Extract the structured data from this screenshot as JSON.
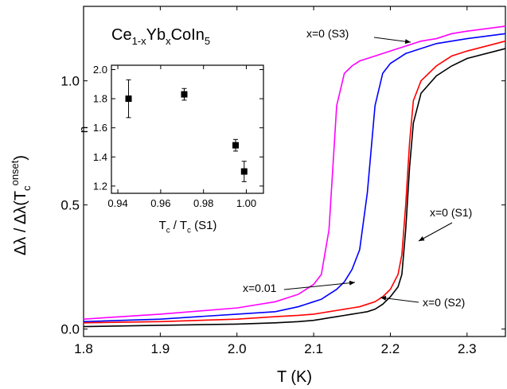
{
  "chart_data": [
    {
      "type": "line",
      "x_label": "T (K)",
      "y_label": [
        {
          "text": "Δλ / Δλ(T"
        },
        {
          "text": "c",
          "shift": "sub"
        },
        {
          "text": "onset",
          "shift": "super"
        },
        {
          "text": ")"
        }
      ],
      "formula": [
        {
          "text": "Ce"
        },
        {
          "text": "1-x",
          "shift": "sub"
        },
        {
          "text": "Yb"
        },
        {
          "text": "x",
          "shift": "sub"
        },
        {
          "text": "CoIn"
        },
        {
          "text": "5",
          "shift": "sub"
        }
      ],
      "annotations": [
        "x=0 (S3)",
        "x=0 (S1)",
        "x=0.01",
        "x=0 (S2)"
      ],
      "x": [
        1.8,
        1.9,
        2.0,
        2.05,
        2.08,
        2.1,
        2.11,
        2.12,
        2.13,
        2.14,
        2.15,
        2.16,
        2.17,
        2.18,
        2.19,
        2.2,
        2.21,
        2.215,
        2.22,
        2.225,
        2.23,
        2.24,
        2.26,
        2.28,
        2.3,
        2.35
      ],
      "series": [
        {
          "color": "#ff00ff",
          "values": [
            0.04,
            0.06,
            0.085,
            0.11,
            0.14,
            0.18,
            0.22,
            0.4,
            0.9,
            1.03,
            1.06,
            1.08,
            1.09,
            1.1,
            1.11,
            1.12,
            1.13,
            1.135,
            1.14,
            1.145,
            1.15,
            1.16,
            1.17,
            1.19,
            1.2,
            1.22
          ]
        },
        {
          "color": "#0000ff",
          "values": [
            0.03,
            0.04,
            0.06,
            0.07,
            0.09,
            0.11,
            0.12,
            0.14,
            0.16,
            0.19,
            0.24,
            0.32,
            0.55,
            0.9,
            1.03,
            1.07,
            1.09,
            1.1,
            1.11,
            1.115,
            1.12,
            1.13,
            1.15,
            1.16,
            1.17,
            1.19
          ]
        },
        {
          "color": "#ff0000",
          "values": [
            0.025,
            0.03,
            0.04,
            0.05,
            0.055,
            0.06,
            0.065,
            0.07,
            0.075,
            0.08,
            0.085,
            0.09,
            0.1,
            0.11,
            0.13,
            0.16,
            0.22,
            0.3,
            0.5,
            0.75,
            0.92,
            1.0,
            1.06,
            1.1,
            1.12,
            1.16
          ]
        },
        {
          "color": "#000000",
          "values": [
            0.01,
            0.015,
            0.02,
            0.025,
            0.03,
            0.035,
            0.04,
            0.045,
            0.05,
            0.055,
            0.06,
            0.065,
            0.07,
            0.08,
            0.1,
            0.13,
            0.17,
            0.22,
            0.4,
            0.65,
            0.83,
            0.95,
            1.02,
            1.06,
            1.09,
            1.13
          ]
        }
      ],
      "xlim": [
        1.8,
        2.35
      ],
      "xticks": [
        1.8,
        1.9,
        {
          "value": 2,
          "label": "2.0"
        },
        2.1,
        2.2,
        2.3
      ],
      "ylim": [
        -0.03,
        1.3
      ],
      "yticks": [
        {
          "value": 0,
          "label": "0.0"
        },
        0.5,
        {
          "value": 1,
          "label": "1.0"
        }
      ]
    },
    {
      "type": "scatter",
      "x_label": [
        {
          "text": "T"
        },
        {
          "text": "c",
          "shift": "sub"
        },
        {
          "text": " / T"
        },
        {
          "text": "c",
          "shift": "sub"
        },
        {
          "text": " (S1)"
        }
      ],
      "y_label": "n",
      "color": "#000000",
      "x": [
        0.945,
        0.971,
        0.995,
        0.999
      ],
      "values": [
        1.8,
        1.83,
        1.48,
        1.3
      ],
      "errors": [
        0.13,
        0.04,
        0.04,
        0.07
      ],
      "xlim": [
        0.937,
        1.008
      ],
      "xticks": [
        0.94,
        0.96,
        0.98,
        {
          "value": 1,
          "label": "1.00"
        }
      ],
      "ylim": [
        1.15,
        2.03
      ],
      "yticks": [
        1.2,
        1.4,
        1.6,
        1.8,
        {
          "value": 2,
          "label": "2.0"
        }
      ]
    }
  ]
}
